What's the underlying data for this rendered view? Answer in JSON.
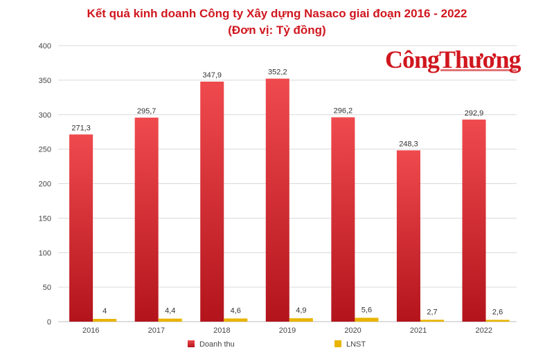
{
  "title_line1": "Kết quả kinh doanh Công ty Xây dựng Nasaco giai đoạn 2016 - 2022",
  "title_line2": "(Đơn vị: Tỷ đồng)",
  "logo_text": "CôngThương",
  "colors": {
    "title": "#d0161e",
    "revenue_top": "#ef4a4e",
    "revenue_bottom": "#b3141c",
    "profit": "#e8b400"
  },
  "chart_data": {
    "type": "bar",
    "categories": [
      "2016",
      "2017",
      "2018",
      "2019",
      "2020",
      "2021",
      "2022"
    ],
    "series": [
      {
        "name": "Doanh thu",
        "values": [
          271.3,
          295.7,
          347.9,
          352.2,
          296.2,
          248.3,
          292.9
        ],
        "labels": [
          "271,3",
          "295,7",
          "347,9",
          "352,2",
          "296,2",
          "248,3",
          "292,9"
        ]
      },
      {
        "name": "LNST",
        "values": [
          4,
          4.4,
          4.6,
          4.9,
          5.6,
          2.7,
          2.6
        ],
        "labels": [
          "4",
          "4,4",
          "4,6",
          "4,9",
          "5,6",
          "2,7",
          "2,6"
        ]
      }
    ],
    "ylim": [
      0,
      400
    ],
    "yticks": [
      0,
      50,
      100,
      150,
      200,
      250,
      300,
      350,
      400
    ],
    "grid": true,
    "legend": "bottom"
  }
}
